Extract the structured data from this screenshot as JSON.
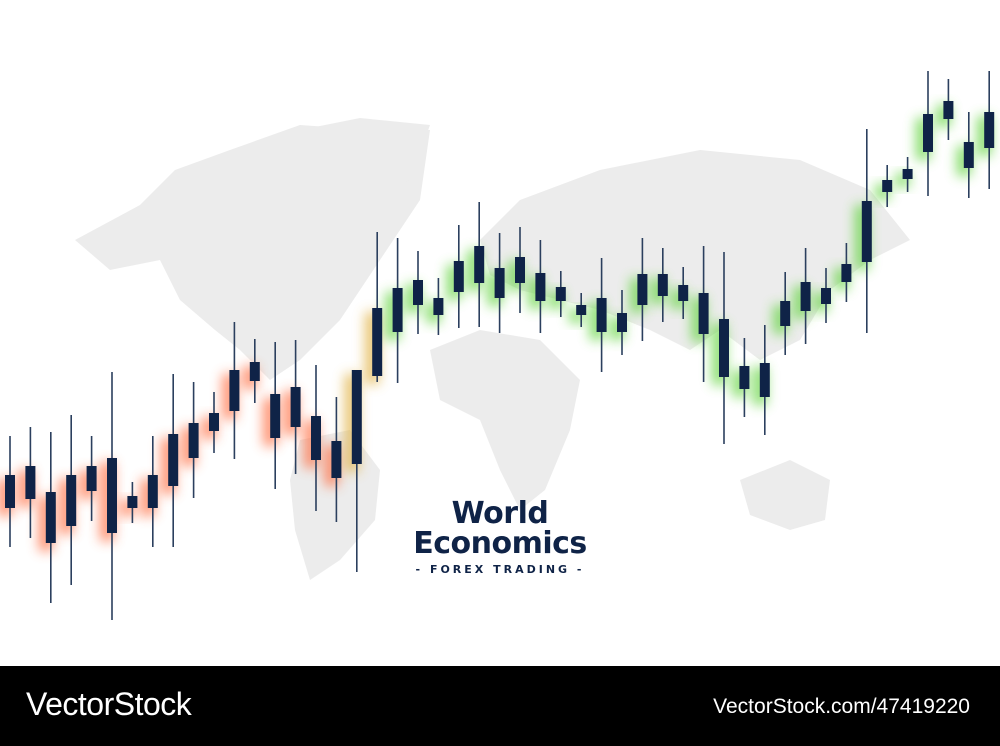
{
  "headline": {
    "line1": "World",
    "line2": "Economics",
    "tagline": "- FOREX TRADING -"
  },
  "footer": {
    "logo": "VectorStock",
    "reference": "VectorStock.com/47419220"
  },
  "colors": {
    "candle": "#0f2347",
    "map": "#ececec",
    "glow_down": "#ff6a3d",
    "glow_up": "#5fd33a",
    "footer_bg": "#000000"
  },
  "chart_data": {
    "type": "candlestick",
    "title": "",
    "xlabel": "",
    "ylabel": "",
    "grid": false,
    "legend": "none",
    "axes_visible": false,
    "ylim": [
      0,
      65
    ],
    "note_fields": [
      "high",
      "low",
      "body_high",
      "body_low"
    ],
    "candles": [
      [
        26.4,
        15.3,
        22.5,
        19.2
      ],
      [
        27.3,
        16.2,
        23.4,
        20.1
      ],
      [
        26.8,
        9.7,
        20.8,
        15.7
      ],
      [
        28.5,
        11.5,
        22.5,
        17.4
      ],
      [
        26.4,
        17.9,
        23.4,
        20.9
      ],
      [
        32.8,
        8.0,
        24.2,
        16.7
      ],
      [
        21.8,
        17.7,
        20.4,
        19.2
      ],
      [
        26.4,
        15.3,
        22.5,
        19.2
      ],
      [
        32.6,
        15.3,
        26.6,
        21.4
      ],
      [
        31.8,
        20.2,
        27.7,
        24.2
      ],
      [
        30.8,
        24.7,
        28.7,
        26.9
      ],
      [
        37.8,
        24.1,
        33.0,
        28.9
      ],
      [
        36.1,
        29.7,
        33.8,
        31.9
      ],
      [
        35.8,
        21.1,
        30.6,
        26.2
      ],
      [
        36.0,
        22.6,
        31.3,
        27.3
      ],
      [
        33.5,
        18.9,
        28.4,
        24.0
      ],
      [
        30.3,
        17.8,
        25.9,
        22.2
      ],
      [
        32.9,
        12.8,
        33.0,
        23.6
      ],
      [
        46.8,
        31.8,
        39.2,
        32.4
      ],
      [
        46.2,
        31.7,
        41.2,
        36.8
      ],
      [
        44.9,
        36.6,
        42.0,
        39.5
      ],
      [
        42.2,
        36.5,
        40.2,
        38.5
      ],
      [
        47.5,
        37.2,
        43.9,
        40.8
      ],
      [
        49.8,
        37.3,
        45.4,
        41.7
      ],
      [
        46.7,
        36.7,
        43.2,
        40.2
      ],
      [
        47.3,
        38.7,
        44.3,
        41.7
      ],
      [
        46.0,
        36.7,
        42.7,
        39.9
      ],
      [
        42.9,
        38.3,
        41.3,
        39.9
      ],
      [
        40.7,
        37.3,
        39.5,
        38.5
      ],
      [
        44.2,
        32.8,
        40.2,
        36.8
      ],
      [
        41.0,
        34.5,
        38.7,
        36.8
      ],
      [
        46.2,
        35.9,
        42.6,
        39.5
      ],
      [
        45.2,
        37.8,
        42.6,
        40.4
      ],
      [
        43.3,
        38.1,
        41.5,
        39.9
      ],
      [
        45.4,
        31.8,
        40.7,
        36.6
      ],
      [
        44.8,
        25.6,
        38.1,
        32.3
      ],
      [
        36.2,
        28.3,
        33.4,
        31.1
      ],
      [
        37.5,
        26.5,
        33.7,
        30.3
      ],
      [
        42.8,
        34.5,
        39.9,
        37.4
      ],
      [
        45.2,
        35.6,
        41.8,
        38.9
      ],
      [
        43.2,
        37.7,
        41.2,
        39.6
      ],
      [
        45.7,
        39.8,
        43.6,
        41.8
      ],
      [
        57.1,
        36.7,
        49.9,
        43.8
      ],
      [
        53.5,
        49.3,
        52.0,
        50.8
      ],
      [
        54.3,
        50.8,
        53.1,
        52.1
      ],
      [
        62.9,
        50.4,
        58.6,
        54.8
      ],
      [
        62.1,
        56.0,
        59.9,
        58.1
      ],
      [
        58.8,
        50.2,
        55.8,
        53.2
      ],
      [
        62.9,
        51.1,
        58.8,
        55.2
      ]
    ]
  }
}
